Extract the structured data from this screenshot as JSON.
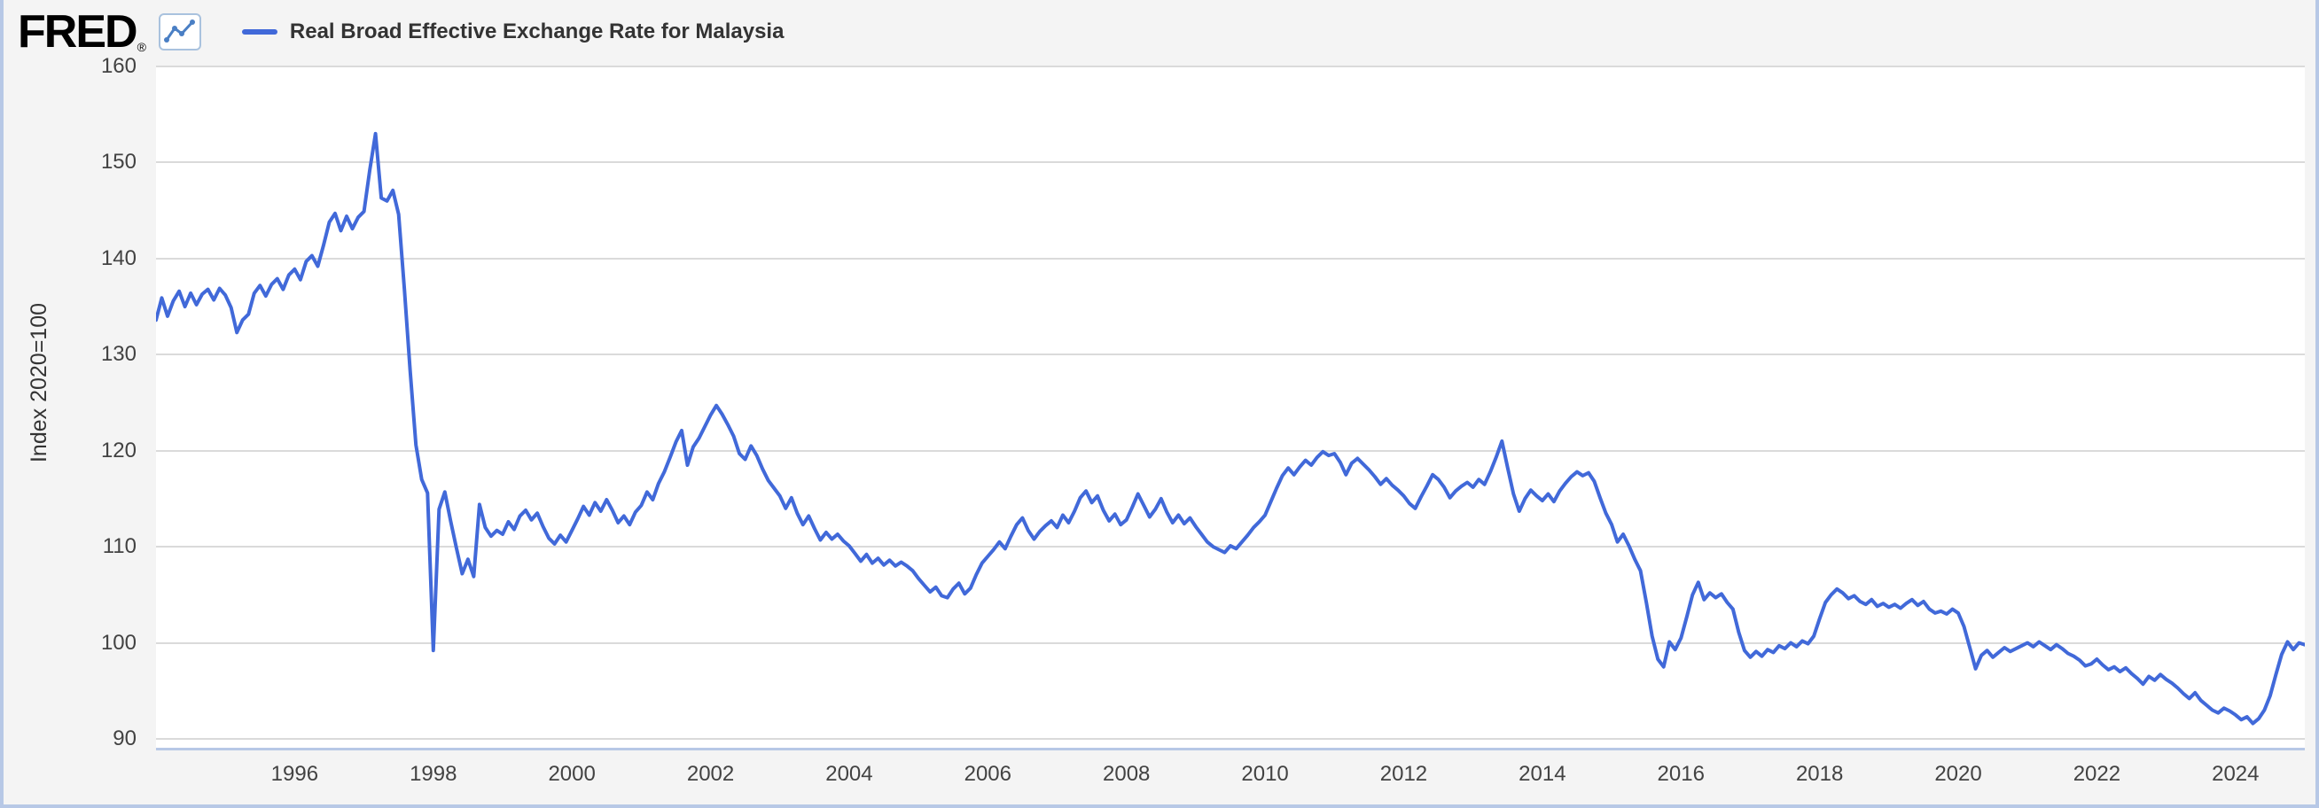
{
  "brand": {
    "logo_text": "FRED",
    "registered_mark": "®"
  },
  "legend": {
    "label": "Real Broad Effective Exchange Rate for Malaysia"
  },
  "chart_data": {
    "type": "line",
    "title": "Real Broad Effective Exchange Rate for Malaysia",
    "ylabel": "Index 2020=100",
    "frequency": "monthly",
    "x_start": {
      "year": 1994,
      "month": 1
    },
    "x_end": {
      "year": 2025,
      "month": 1
    },
    "x_ticks": [
      1996,
      1998,
      2000,
      2002,
      2004,
      2006,
      2008,
      2010,
      2012,
      2014,
      2016,
      2018,
      2020,
      2022,
      2024
    ],
    "y_ticks": [
      90,
      100,
      110,
      120,
      130,
      140,
      150,
      160
    ],
    "ylim": [
      88.8,
      160
    ],
    "grid": "horizontal-only",
    "legend_position": "top-left",
    "line_color": "#4169d9",
    "values": [
      133.6,
      135.9,
      134.0,
      135.6,
      136.6,
      135.0,
      136.4,
      135.2,
      136.3,
      136.8,
      135.7,
      136.9,
      136.2,
      134.9,
      132.3,
      133.6,
      134.2,
      136.4,
      137.2,
      136.1,
      137.3,
      137.9,
      136.8,
      138.3,
      138.9,
      137.8,
      139.7,
      140.3,
      139.2,
      141.4,
      143.8,
      144.7,
      142.9,
      144.4,
      143.1,
      144.3,
      144.9,
      149.2,
      153.0,
      146.3,
      146.0,
      147.1,
      144.6,
      136.8,
      128.3,
      120.6,
      117.0,
      115.6,
      99.2,
      113.9,
      115.7,
      112.7,
      109.9,
      107.2,
      108.7,
      106.9,
      114.4,
      112.0,
      111.1,
      111.7,
      111.3,
      112.6,
      111.8,
      113.2,
      113.8,
      112.8,
      113.5,
      112.1,
      110.9,
      110.3,
      111.2,
      110.5,
      111.7,
      112.9,
      114.2,
      113.3,
      114.6,
      113.7,
      114.9,
      113.8,
      112.5,
      113.2,
      112.3,
      113.6,
      114.3,
      115.7,
      114.9,
      116.6,
      117.8,
      119.3,
      120.9,
      122.1,
      118.5,
      120.4,
      121.3,
      122.5,
      123.7,
      124.7,
      123.8,
      122.7,
      121.5,
      119.7,
      119.1,
      120.5,
      119.5,
      118.1,
      116.9,
      116.1,
      115.3,
      114.0,
      115.1,
      113.5,
      112.3,
      113.2,
      111.9,
      110.7,
      111.5,
      110.8,
      111.3,
      110.6,
      110.1,
      109.3,
      108.5,
      109.2,
      108.3,
      108.8,
      108.1,
      108.6,
      108.0,
      108.4,
      108.0,
      107.5,
      106.7,
      106.0,
      105.3,
      105.8,
      104.9,
      104.7,
      105.6,
      106.2,
      105.1,
      105.7,
      107.1,
      108.3,
      109.0,
      109.7,
      110.5,
      109.8,
      111.1,
      112.3,
      113.0,
      111.7,
      110.8,
      111.6,
      112.2,
      112.7,
      112.0,
      113.3,
      112.5,
      113.7,
      115.1,
      115.8,
      114.6,
      115.3,
      113.8,
      112.7,
      113.4,
      112.3,
      112.8,
      114.1,
      115.5,
      114.3,
      113.1,
      113.9,
      115.0,
      113.6,
      112.5,
      113.3,
      112.4,
      113.0,
      112.1,
      111.3,
      110.5,
      110.0,
      109.7,
      109.4,
      110.1,
      109.8,
      110.5,
      111.2,
      112.0,
      112.6,
      113.3,
      114.7,
      116.1,
      117.4,
      118.2,
      117.5,
      118.3,
      119.0,
      118.5,
      119.3,
      119.9,
      119.5,
      119.7,
      118.8,
      117.5,
      118.7,
      119.2,
      118.6,
      118.0,
      117.3,
      116.5,
      117.1,
      116.4,
      115.9,
      115.3,
      114.5,
      114.0,
      115.2,
      116.3,
      117.5,
      117.0,
      116.2,
      115.1,
      115.8,
      116.3,
      116.7,
      116.2,
      117.0,
      116.5,
      117.8,
      119.3,
      121.0,
      118.2,
      115.5,
      113.7,
      115.0,
      115.9,
      115.3,
      114.8,
      115.5,
      114.7,
      115.8,
      116.6,
      117.3,
      117.8,
      117.4,
      117.7,
      116.8,
      115.1,
      113.5,
      112.3,
      110.5,
      111.3,
      110.1,
      108.7,
      107.5,
      104.2,
      100.7,
      98.3,
      97.5,
      100.1,
      99.3,
      100.5,
      102.7,
      105.0,
      106.3,
      104.5,
      105.2,
      104.7,
      105.1,
      104.2,
      103.5,
      101.1,
      99.2,
      98.5,
      99.1,
      98.6,
      99.3,
      99.0,
      99.7,
      99.4,
      100.0,
      99.6,
      100.2,
      99.9,
      100.7,
      102.5,
      104.2,
      105.0,
      105.6,
      105.2,
      104.6,
      104.9,
      104.3,
      104.0,
      104.5,
      103.8,
      104.1,
      103.7,
      104.0,
      103.6,
      104.1,
      104.5,
      103.9,
      104.3,
      103.5,
      103.1,
      103.3,
      103.0,
      103.5,
      103.1,
      101.7,
      99.5,
      97.3,
      98.7,
      99.2,
      98.5,
      99.0,
      99.5,
      99.1,
      99.4,
      99.7,
      100.0,
      99.6,
      100.1,
      99.7,
      99.3,
      99.8,
      99.4,
      98.9,
      98.6,
      98.2,
      97.6,
      97.8,
      98.3,
      97.7,
      97.2,
      97.5,
      97.0,
      97.4,
      96.8,
      96.3,
      95.7,
      96.5,
      96.1,
      96.7,
      96.2,
      95.8,
      95.3,
      94.7,
      94.2,
      94.8,
      94.0,
      93.5,
      93.0,
      92.7,
      93.2,
      92.9,
      92.5,
      92.0,
      92.3,
      91.6,
      92.1,
      93.0,
      94.5,
      96.7,
      98.8,
      100.1,
      99.3,
      100.0,
      99.8
    ]
  }
}
